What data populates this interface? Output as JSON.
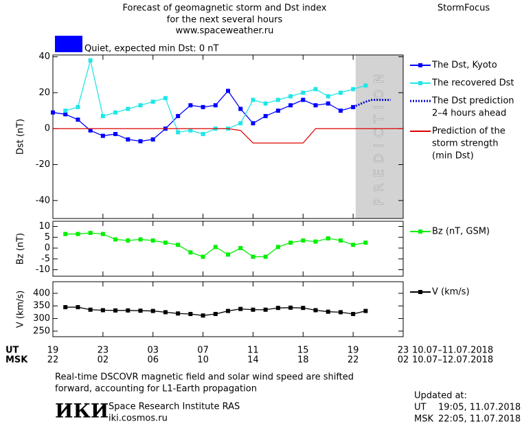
{
  "header": {
    "title_lines": [
      "Forecast of geomagnetic storm and Dst index",
      "for the next several hours",
      "www.spaceweather.ru"
    ],
    "brand": "StormFocus"
  },
  "status": {
    "color": "#0000ff",
    "text": "Quiet, expected min Dst: 0 nT"
  },
  "x_axis": {
    "xlim": [
      0,
      28
    ],
    "ut_label": "UT",
    "msk_label": "MSK",
    "ut_ticks": [
      {
        "value": 0,
        "label": "19"
      },
      {
        "value": 4,
        "label": "23"
      },
      {
        "value": 8,
        "label": "03"
      },
      {
        "value": 12,
        "label": "07"
      },
      {
        "value": 16,
        "label": "11"
      },
      {
        "value": 20,
        "label": "15"
      },
      {
        "value": 24,
        "label": "19"
      },
      {
        "value": 28,
        "label": "23"
      }
    ],
    "msk_ticks": [
      {
        "value": 0,
        "label": "22"
      },
      {
        "value": 4,
        "label": "02"
      },
      {
        "value": 8,
        "label": "06"
      },
      {
        "value": 12,
        "label": "10"
      },
      {
        "value": 16,
        "label": "14"
      },
      {
        "value": 20,
        "label": "18"
      },
      {
        "value": 24,
        "label": "22"
      },
      {
        "value": 28,
        "label": "02"
      }
    ],
    "ut_range": "10.07–11.07.2018",
    "msk_range": "10.07–12.07.2018"
  },
  "chart_data": [
    {
      "type": "line",
      "ylabel": "Dst (nT)",
      "ylim": [
        -50,
        41
      ],
      "yticks": [
        40,
        20,
        0,
        -20,
        -40
      ],
      "shaded_region": {
        "xlim": [
          24.2,
          28
        ],
        "label": "PREDICTION",
        "color": "#d3d3d3"
      },
      "series": [
        {
          "name": [
            "The Dst, Kyoto"
          ],
          "color": "#0000ff",
          "marker": true,
          "dash": "solid",
          "x": [
            0,
            1,
            2,
            3,
            4,
            5,
            6,
            7,
            8,
            9,
            10,
            11,
            12,
            13,
            14,
            15,
            16,
            17,
            18,
            19,
            20,
            21,
            22,
            23,
            24
          ],
          "values": [
            9,
            8,
            5,
            -1,
            -4,
            -3,
            -6,
            -7,
            -6,
            0,
            7,
            13,
            12,
            13,
            21,
            11,
            3,
            7,
            10,
            13,
            16,
            13,
            14,
            10,
            12
          ]
        },
        {
          "name": [
            "The recovered Dst"
          ],
          "color": "#22e6e6",
          "marker": true,
          "dash": "solid",
          "x": [
            1,
            2,
            3,
            4,
            5,
            6,
            7,
            8,
            9,
            10,
            11,
            12,
            13,
            14,
            15,
            16,
            17,
            18,
            19,
            20,
            21,
            22,
            23,
            24,
            25
          ],
          "values": [
            10,
            12,
            38,
            7,
            9,
            11,
            13,
            15,
            17,
            -2,
            -1,
            -3,
            0,
            0,
            3,
            16,
            14,
            16,
            18,
            20,
            22,
            18,
            20,
            22,
            24
          ]
        },
        {
          "name": [
            "The Dst prediction",
            "2–4 hours ahead"
          ],
          "color": "#0000cc",
          "marker": false,
          "dash": "dotted",
          "x": [
            24,
            25,
            25.5,
            27
          ],
          "values": [
            12,
            15,
            16,
            16
          ]
        },
        {
          "name": [
            "Prediction of the",
            "storm strength",
            "(min Dst)"
          ],
          "color": "#dd0000",
          "marker": false,
          "dash": "solid",
          "x": [
            0,
            14,
            15,
            16,
            20,
            21,
            28
          ],
          "values": [
            0,
            0,
            -1,
            -8,
            -8,
            0,
            0
          ]
        }
      ]
    },
    {
      "type": "line",
      "ylabel": "Bz (nT)",
      "ylim": [
        -13,
        12.4
      ],
      "yticks": [
        10,
        5,
        0,
        -5,
        -10
      ],
      "series": [
        {
          "name": [
            "Bz (nT, GSM)"
          ],
          "color": "#00ee00",
          "marker": true,
          "dash": "solid",
          "x": [
            1,
            2,
            3,
            4,
            5,
            6,
            7,
            8,
            9,
            10,
            11,
            12,
            13,
            14,
            15,
            16,
            17,
            18,
            19,
            20,
            21,
            22,
            23,
            24,
            25
          ],
          "values": [
            6.5,
            6.5,
            7,
            6.5,
            4,
            3.5,
            4,
            3.5,
            2.5,
            1.5,
            -2,
            -4,
            0.5,
            -3,
            0,
            -4,
            -4,
            0.5,
            2.5,
            3.5,
            3,
            4.5,
            3.5,
            1.5,
            2.5
          ]
        }
      ]
    },
    {
      "type": "line",
      "ylabel": "V (km/s)",
      "ylim": [
        228,
        446
      ],
      "yticks": [
        400,
        350,
        300,
        250
      ],
      "series": [
        {
          "name": [
            "V (km/s)"
          ],
          "color": "#000000",
          "marker": true,
          "dash": "solid",
          "x": [
            1,
            2,
            3,
            4,
            5,
            6,
            7,
            8,
            9,
            10,
            11,
            12,
            13,
            14,
            15,
            16,
            17,
            18,
            19,
            20,
            21,
            22,
            23,
            24,
            25
          ],
          "values": [
            345,
            345,
            335,
            333,
            332,
            332,
            331,
            330,
            325,
            320,
            318,
            312,
            318,
            330,
            338,
            335,
            335,
            342,
            343,
            342,
            333,
            327,
            325,
            318,
            330
          ]
        }
      ]
    }
  ],
  "note": [
    "Real-time DSCOVR magnetic field and solar wind speed are shifted",
    "forward, accounting for L1-Earth propagation"
  ],
  "institute": {
    "logo": "ИКИ",
    "name": "Space Research Institute RAS",
    "url": "iki.cosmos.ru"
  },
  "updated": {
    "title": "Updated at:",
    "ut_label": "UT",
    "ut_time": "19:05, 11.07.2018",
    "msk_label": "MSK",
    "msk_time": "22:05, 11.07.2018"
  }
}
